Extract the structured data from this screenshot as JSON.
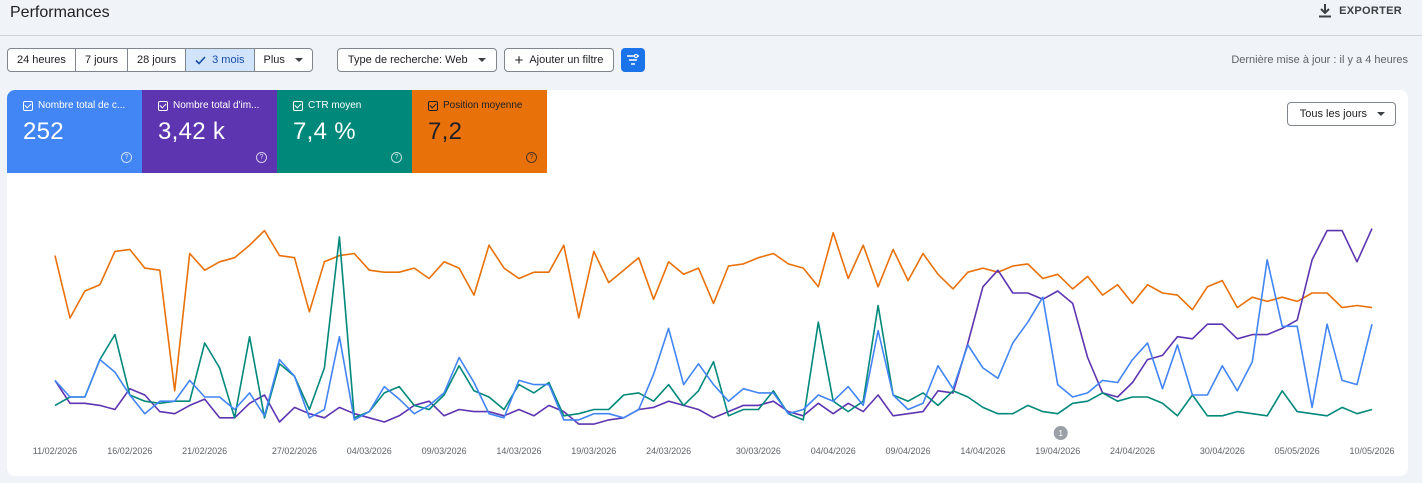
{
  "header": {
    "title": "Performances",
    "export_label": "EXPORTER"
  },
  "range_tabs": [
    "24 heures",
    "7 jours",
    "28 jours",
    "3 mois",
    "Plus"
  ],
  "range_active": "3 mois",
  "filters": {
    "search_type": "Type de recherche: Web",
    "add_filter": "Ajouter un filtre"
  },
  "last_update": "Dernière mise à jour : il y a 4 heures",
  "metrics": [
    {
      "label": "Nombre total de c...",
      "value": "252",
      "color": "#4285f4"
    },
    {
      "label": "Nombre total d'im...",
      "value": "3,42 k",
      "color": "#5e35b1"
    },
    {
      "label": "CTR moyen",
      "value": "7,4 %",
      "color": "#00897b"
    },
    {
      "label": "Position moyenne",
      "value": "7,2",
      "color": "#e8710a"
    }
  ],
  "days_select": "Tous les jours",
  "annotation_marker": "1",
  "icons": {
    "export": "download-icon",
    "filter": "filter-sliders-icon",
    "check": "check-icon",
    "help": "help-circle-icon"
  },
  "chart_data": {
    "type": "line",
    "x_tick_labels": [
      "11/02/2026",
      "16/02/2026",
      "21/02/2026",
      "27/02/2026",
      "04/03/2026",
      "09/03/2026",
      "14/03/2026",
      "19/03/2026",
      "24/03/2026",
      "30/03/2026",
      "04/04/2026",
      "09/04/2026",
      "14/04/2026",
      "19/04/2026",
      "24/04/2026",
      "30/04/2026",
      "05/05/2026",
      "10/05/2026"
    ],
    "x_tick_day_index": [
      0,
      5,
      10,
      16,
      21,
      26,
      31,
      36,
      41,
      47,
      52,
      57,
      62,
      67,
      72,
      78,
      83,
      88
    ],
    "days": 89,
    "series": [
      {
        "color": "#e8710a",
        "values": [
          0.8,
          0.5,
          0.63,
          0.66,
          0.82,
          0.83,
          0.74,
          0.73,
          0.15,
          0.81,
          0.73,
          0.77,
          0.79,
          0.85,
          0.92,
          0.8,
          0.79,
          0.53,
          0.77,
          0.8,
          0.81,
          0.73,
          0.72,
          0.72,
          0.74,
          0.69,
          0.77,
          0.74,
          0.61,
          0.85,
          0.74,
          0.69,
          0.72,
          0.72,
          0.85,
          0.5,
          0.82,
          0.67,
          0.73,
          0.79,
          0.59,
          0.77,
          0.71,
          0.74,
          0.57,
          0.75,
          0.76,
          0.79,
          0.81,
          0.76,
          0.74,
          0.65,
          0.91,
          0.69,
          0.85,
          0.65,
          0.83,
          0.68,
          0.81,
          0.71,
          0.64,
          0.72,
          0.74,
          0.72,
          0.75,
          0.76,
          0.69,
          0.71,
          0.64,
          0.7,
          0.61,
          0.66,
          0.57,
          0.66,
          0.62,
          0.61,
          0.54,
          0.65,
          0.68,
          0.55,
          0.6,
          0.58,
          0.6,
          0.58,
          0.62,
          0.62,
          0.55,
          0.56,
          0.55
        ]
      },
      {
        "color": "#5e35b1",
        "values": [
          0.2,
          0.09,
          0.09,
          0.08,
          0.06,
          0.16,
          0.13,
          0.05,
          0.04,
          0.08,
          0.11,
          0.02,
          0.02,
          0.09,
          0.13,
          0.0,
          0.07,
          0.04,
          0.02,
          0.07,
          0.04,
          0.02,
          0.0,
          0.03,
          0.08,
          0.1,
          0.03,
          0.06,
          0.05,
          0.05,
          0.03,
          0.06,
          0.03,
          0.08,
          0.05,
          -0.01,
          -0.01,
          0.01,
          0.02,
          0.06,
          0.07,
          0.1,
          0.08,
          0.06,
          0.02,
          0.05,
          0.08,
          0.08,
          0.1,
          0.05,
          0.03,
          0.09,
          0.04,
          0.09,
          0.05,
          0.13,
          0.03,
          0.04,
          0.05,
          0.15,
          0.14,
          0.38,
          0.65,
          0.73,
          0.62,
          0.62,
          0.59,
          0.63,
          0.57,
          0.31,
          0.14,
          0.12,
          0.19,
          0.3,
          0.32,
          0.41,
          0.4,
          0.47,
          0.47,
          0.4,
          0.42,
          0.42,
          0.45,
          0.49,
          0.78,
          0.92,
          0.92,
          0.77,
          0.93
        ]
      },
      {
        "color": "#00897b",
        "values": [
          0.08,
          0.12,
          0.12,
          0.3,
          0.42,
          0.13,
          0.1,
          0.09,
          0.1,
          0.1,
          0.38,
          0.26,
          0.02,
          0.41,
          0.02,
          0.28,
          0.22,
          0.06,
          0.26,
          0.89,
          0.02,
          0.05,
          0.14,
          0.17,
          0.08,
          0.06,
          0.13,
          0.27,
          0.15,
          0.12,
          0.06,
          0.18,
          0.14,
          0.19,
          0.03,
          0.04,
          0.06,
          0.06,
          0.13,
          0.14,
          0.1,
          0.18,
          0.08,
          0.15,
          0.29,
          0.03,
          0.06,
          0.06,
          0.15,
          0.04,
          0.01,
          0.48,
          0.1,
          0.05,
          0.1,
          0.56,
          0.13,
          0.1,
          0.14,
          0.08,
          0.15,
          0.12,
          0.07,
          0.04,
          0.04,
          0.08,
          0.05,
          0.04,
          0.09,
          0.1,
          0.14,
          0.1,
          0.12,
          0.12,
          0.09,
          0.03,
          0.13,
          0.03,
          0.03,
          0.05,
          0.04,
          0.03,
          0.15,
          0.05,
          0.04,
          0.03,
          0.07,
          0.04,
          0.06
        ]
      },
      {
        "color": "#4285f4",
        "values": [
          0.2,
          0.12,
          0.12,
          0.3,
          0.24,
          0.13,
          0.04,
          0.1,
          0.1,
          0.2,
          0.12,
          0.12,
          0.06,
          0.14,
          0.03,
          0.3,
          0.22,
          0.02,
          0.06,
          0.41,
          0.01,
          0.05,
          0.17,
          0.11,
          0.04,
          0.08,
          0.14,
          0.31,
          0.19,
          0.04,
          0.02,
          0.2,
          0.18,
          0.18,
          0.01,
          0.01,
          0.04,
          0.04,
          0.02,
          0.06,
          0.23,
          0.45,
          0.18,
          0.28,
          0.18,
          0.1,
          0.16,
          0.14,
          0.14,
          0.04,
          0.06,
          0.13,
          0.1,
          0.17,
          0.08,
          0.44,
          0.13,
          0.06,
          0.09,
          0.27,
          0.16,
          0.37,
          0.26,
          0.21,
          0.38,
          0.48,
          0.6,
          0.18,
          0.12,
          0.14,
          0.2,
          0.19,
          0.3,
          0.38,
          0.16,
          0.37,
          0.13,
          0.13,
          0.27,
          0.15,
          0.29,
          0.78,
          0.46,
          0.46,
          0.07,
          0.47,
          0.2,
          0.18,
          0.47
        ]
      }
    ],
    "ylim": [
      0,
      1
    ],
    "grid": false,
    "legend": "top (metric cards)"
  }
}
